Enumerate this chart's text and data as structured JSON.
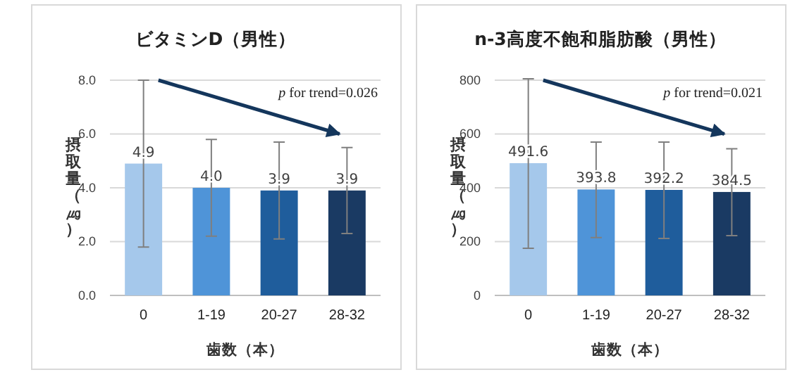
{
  "chart_data": [
    {
      "type": "bar",
      "title": "ビタミンD（男性）",
      "xlabel": "歯数（本）",
      "ylabel": "摂取量（㎍）",
      "categories": [
        "0",
        "1-19",
        "20-27",
        "28-32"
      ],
      "values": [
        4.9,
        4.0,
        3.9,
        3.9
      ],
      "colors": [
        "#a5c8eb",
        "#4f94d8",
        "#1f5d9c",
        "#1a3a63"
      ],
      "errors": [
        [
          1.8,
          8.0
        ],
        [
          2.2,
          5.8
        ],
        [
          2.1,
          5.7
        ],
        [
          2.3,
          5.5
        ]
      ],
      "ylim": [
        0,
        8
      ],
      "yticks": [
        {
          "value": 0,
          "label": "0.0"
        },
        {
          "value": 2,
          "label": "2.0"
        },
        {
          "value": 4,
          "label": "4.0"
        },
        {
          "value": 6,
          "label": "6.0"
        },
        {
          "value": 8,
          "label": "8.0"
        }
      ],
      "grid": "y",
      "value_labels": [
        "4.9",
        "4.0",
        "3.9",
        "3.9"
      ],
      "annotations": [
        "p for trend=0.026"
      ]
    },
    {
      "type": "bar",
      "title": "n-3高度不飽和脂肪酸（男性）",
      "xlabel": "歯数（本）",
      "ylabel": "摂取量（㎍）",
      "categories": [
        "0",
        "1-19",
        "20-27",
        "28-32"
      ],
      "values": [
        491.6,
        393.8,
        392.2,
        384.5
      ],
      "colors": [
        "#a5c8eb",
        "#4f94d8",
        "#1f5d9c",
        "#1a3a63"
      ],
      "errors": [
        [
          175,
          805
        ],
        [
          215,
          570
        ],
        [
          212,
          570
        ],
        [
          222,
          545
        ]
      ],
      "ylim": [
        0,
        800
      ],
      "yticks": [
        0,
        200,
        400,
        600,
        800
      ],
      "grid": "y",
      "data_labels": true,
      "annotations": [
        "p for trend=0.021"
      ]
    }
  ]
}
